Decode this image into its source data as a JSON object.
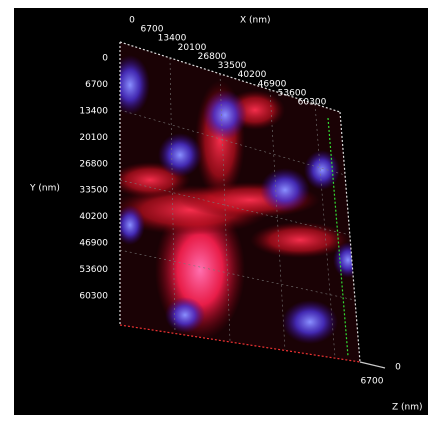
{
  "x_axis": {
    "label": "X (nm)",
    "ticks": [
      "0",
      "6700",
      "13400",
      "20100",
      "26800",
      "33500",
      "40200",
      "46900",
      "53600",
      "60300"
    ]
  },
  "y_axis": {
    "label": "Y (nm)",
    "ticks": [
      "0",
      "6700",
      "13400",
      "20100",
      "26800",
      "33500",
      "40200",
      "46900",
      "53600",
      "60300"
    ]
  },
  "z_axis": {
    "label": "Z (nm)",
    "ticks": [
      "0",
      "6700"
    ]
  }
}
